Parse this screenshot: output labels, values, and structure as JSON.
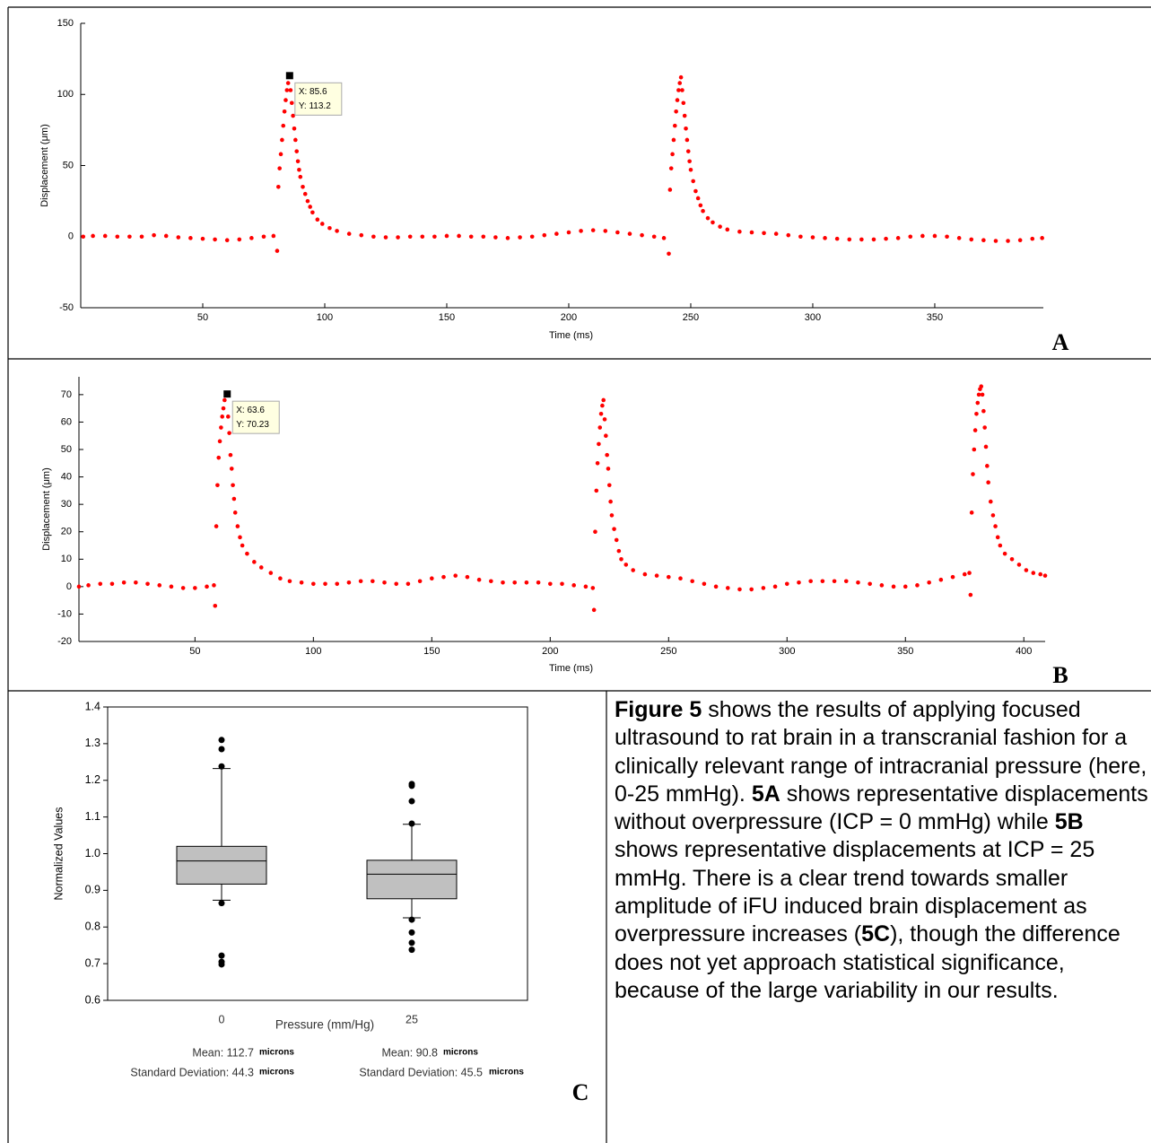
{
  "panel_labels": [
    "A",
    "B",
    "C"
  ],
  "chart_data": [
    {
      "type": "scatter",
      "x_label": "Time (ms)",
      "y_label": "Displacement (μm)",
      "color": "#ff0000",
      "xlim": [
        0,
        394.5
      ],
      "ylim": [
        -50,
        150
      ],
      "xticks": [
        50,
        100,
        150,
        200,
        250,
        300,
        350
      ],
      "yticks": [
        -50,
        0,
        50,
        100,
        150
      ],
      "x": [
        1,
        5,
        10,
        15,
        20,
        25,
        30,
        35,
        40,
        45,
        50,
        55,
        60,
        65,
        70,
        75,
        79,
        80.5,
        81,
        81.5,
        82,
        82.5,
        83,
        83.5,
        84,
        84.5,
        85,
        85.6,
        86,
        86.5,
        87,
        87.5,
        88,
        88.5,
        89,
        89.5,
        90,
        91,
        92,
        93,
        94,
        95,
        97,
        99,
        102,
        105,
        110,
        115,
        120,
        125,
        130,
        135,
        140,
        145,
        150,
        155,
        160,
        165,
        170,
        175,
        180,
        185,
        190,
        195,
        200,
        205,
        210,
        215,
        220,
        225,
        230,
        235,
        239,
        241,
        241.5,
        242,
        242.5,
        243,
        243.5,
        244,
        244.5,
        245,
        245.5,
        246,
        246.5,
        247,
        247.5,
        248,
        248.5,
        249,
        249.5,
        250,
        251,
        252,
        253,
        254,
        255,
        257,
        259,
        262,
        265,
        270,
        275,
        280,
        285,
        290,
        295,
        300,
        305,
        310,
        315,
        320,
        325,
        330,
        335,
        340,
        345,
        350,
        355,
        360,
        365,
        370,
        375,
        380,
        385,
        390,
        394
      ],
      "values": [
        0,
        0.5,
        0.5,
        0,
        0,
        0,
        1,
        0.5,
        -0.5,
        -1,
        -1.5,
        -2,
        -2.5,
        -2,
        -1,
        0,
        0.5,
        -10,
        35,
        48,
        58,
        68,
        78,
        88,
        96,
        103,
        108,
        113.2,
        103,
        94,
        85,
        76,
        68,
        60,
        53,
        47,
        42,
        35,
        30,
        25,
        21,
        17,
        12,
        9,
        6,
        4,
        2,
        1,
        0,
        -0.5,
        -0.5,
        0,
        0,
        0,
        0.5,
        0.5,
        0,
        0,
        -0.5,
        -1,
        -0.5,
        0,
        1,
        2,
        3,
        4,
        4.5,
        4,
        3,
        2,
        1,
        0,
        -1,
        -12,
        33,
        48,
        58,
        68,
        78,
        88,
        96,
        103,
        108,
        112,
        103,
        94,
        85,
        76,
        68,
        60,
        53,
        47,
        39,
        32,
        27,
        22,
        18,
        13,
        10,
        7,
        5,
        3.5,
        3,
        2.5,
        2,
        1,
        0,
        -0.5,
        -1,
        -1.5,
        -2,
        -2,
        -2,
        -1.5,
        -1,
        0,
        0.5,
        0.5,
        0,
        -1,
        -2,
        -2.5,
        -3,
        -3,
        -2.5,
        -1.5,
        -1
      ],
      "annotation": {
        "x": 85.6,
        "y": 113.2,
        "text": [
          "X: 85.6",
          "Y: 113.2"
        ]
      }
    },
    {
      "type": "scatter",
      "x_label": "Time (ms)",
      "y_label": "Displacement (μm)",
      "color": "#ff0000",
      "xlim": [
        1,
        409
      ],
      "ylim": [
        -20,
        76.5
      ],
      "xticks": [
        50,
        100,
        150,
        200,
        250,
        300,
        350,
        400
      ],
      "yticks": [
        -20,
        -10,
        0,
        10,
        20,
        30,
        40,
        50,
        60,
        70
      ],
      "x": [
        1,
        5,
        10,
        15,
        20,
        25,
        30,
        35,
        40,
        45,
        50,
        55,
        58,
        58.5,
        59,
        59.5,
        60,
        60.5,
        61,
        61.5,
        62,
        62.5,
        63.6,
        64,
        64.5,
        65,
        65.5,
        66,
        66.5,
        67,
        68,
        69,
        70,
        72,
        75,
        78,
        82,
        86,
        90,
        95,
        100,
        105,
        110,
        115,
        120,
        125,
        130,
        135,
        140,
        145,
        150,
        155,
        160,
        165,
        170,
        175,
        180,
        185,
        190,
        195,
        200,
        205,
        210,
        215,
        218,
        218.5,
        219,
        219.5,
        220,
        220.5,
        221,
        221.5,
        222,
        222.5,
        223,
        223.5,
        224,
        224.5,
        225,
        225.5,
        226,
        227,
        228,
        229,
        230,
        232,
        235,
        240,
        245,
        250,
        255,
        260,
        265,
        270,
        275,
        280,
        285,
        290,
        295,
        300,
        305,
        310,
        315,
        320,
        325,
        330,
        335,
        340,
        345,
        350,
        355,
        360,
        365,
        370,
        375,
        377,
        377.5,
        378,
        378.5,
        379,
        379.5,
        380,
        380.5,
        381,
        381.5,
        382,
        382.5,
        383,
        383.5,
        384,
        384.5,
        385,
        386,
        387,
        388,
        389,
        390,
        392,
        395,
        398,
        401,
        404,
        407,
        409
      ],
      "values": [
        0,
        0.5,
        1,
        1,
        1.5,
        1.5,
        1,
        0.5,
        0,
        -0.5,
        -0.5,
        0,
        0.5,
        -7,
        22,
        37,
        47,
        53,
        58,
        62,
        65,
        68,
        70.23,
        62,
        56,
        48,
        43,
        37,
        32,
        27,
        22,
        18,
        15,
        12,
        9,
        7,
        5,
        3,
        2,
        1.5,
        1,
        1,
        1,
        1.5,
        2,
        2,
        1.5,
        1,
        1,
        2,
        3,
        3.5,
        4,
        3.5,
        2.5,
        2,
        1.5,
        1.5,
        1.5,
        1.5,
        1,
        1,
        0.5,
        0,
        -0.5,
        -8.5,
        20,
        35,
        45,
        52,
        58,
        63,
        66,
        68,
        61,
        55,
        48,
        43,
        37,
        31,
        26,
        21,
        17,
        13,
        10,
        8,
        6,
        4.5,
        4,
        3.5,
        3,
        2,
        1,
        0,
        -0.5,
        -1,
        -1,
        -0.5,
        0,
        1,
        1.5,
        2,
        2,
        2,
        2,
        1.5,
        1,
        0.5,
        0,
        0,
        0.5,
        1.5,
        2.5,
        3.5,
        4.5,
        5,
        -3,
        27,
        41,
        50,
        57,
        63,
        67,
        70,
        72,
        73,
        70,
        64,
        58,
        51,
        44,
        38,
        31,
        26,
        22,
        18,
        15,
        12,
        10,
        8,
        6,
        5,
        4.5,
        4
      ],
      "annotation": {
        "x": 63.6,
        "y": 70.23,
        "text": [
          "X: 63.6",
          "Y: 70.23"
        ]
      }
    },
    {
      "type": "box",
      "x_label": "Pressure (mm/Hg)",
      "y_label": "Normalized Values",
      "color": "#c0c0c0",
      "categories": [
        "0",
        "25"
      ],
      "ylim": [
        0.6,
        1.4
      ],
      "yticks": [
        0.6,
        0.7,
        0.8,
        0.9,
        {
          "value": 1,
          "label": "1.0"
        },
        1.1,
        1.2,
        1.3,
        1.4
      ],
      "boxes": [
        {
          "whislo": 0.873,
          "q1": 0.917,
          "med": 0.98,
          "q3": 1.02,
          "whishi": 1.232,
          "fliers": [
            1.31,
            1.285,
            1.238,
            0.865,
            0.722,
            0.705,
            0.698
          ]
        },
        {
          "whislo": 0.825,
          "q1": 0.877,
          "med": 0.944,
          "q3": 0.982,
          "whishi": 1.08,
          "fliers": [
            1.19,
            1.185,
            1.143,
            1.082,
            0.82,
            0.785,
            0.757,
            0.738
          ]
        }
      ],
      "stats": [
        {
          "mean": "Mean: 112.7",
          "sd": "Standard Deviation: 44.3"
        },
        {
          "mean": "Mean: 90.8",
          "sd": "Standard Deviation: 45.5"
        }
      ],
      "unit": "microns"
    }
  ],
  "caption": [
    "Figure 5",
    " shows the results of applying focused ultrasound to rat brain in a transcranial fashion for a clinically relevant range of intracranial pressure (here, 0-25 mmHg).  ",
    "5A",
    " shows representative displacements without overpressure (ICP = 0 mmHg) while ",
    "5B",
    " shows representative displacements at ICP = 25 mmHg.  There is a clear trend towards smaller amplitude of iFU induced brain displacement as overpressure increases (",
    "5C",
    "), though the difference does not yet approach statistical significance, because of the large variability in our results."
  ]
}
